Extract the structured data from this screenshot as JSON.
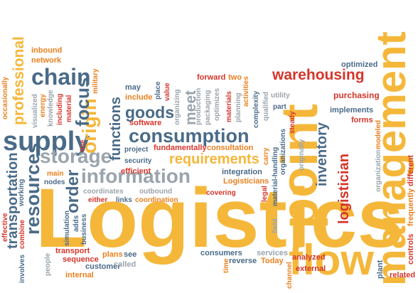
{
  "colors": {
    "yellow": "#f5b73a",
    "red": "#d5352a",
    "slate": "#4a6b88",
    "gray": "#9aa4ad",
    "orange": "#e9801f"
  },
  "words": [
    {
      "text": "Logistics",
      "color": "yellow"
    },
    {
      "text": "management",
      "color": "yellow"
    },
    {
      "text": "point",
      "color": "yellow"
    },
    {
      "text": "flow",
      "color": "yellow"
    },
    {
      "text": "warehousing",
      "color": "red"
    },
    {
      "text": "chain",
      "color": "slate"
    },
    {
      "text": "supply",
      "color": "slate"
    },
    {
      "text": "storage",
      "color": "gray"
    },
    {
      "text": "information",
      "color": "gray"
    },
    {
      "text": "consumption",
      "color": "slate"
    },
    {
      "text": "goods",
      "color": "slate"
    },
    {
      "text": "requirements",
      "color": "yellow"
    },
    {
      "text": "resources",
      "color": "slate"
    },
    {
      "text": "origin",
      "color": "yellow"
    },
    {
      "text": "focus",
      "color": "slate"
    },
    {
      "text": "order",
      "color": "slate"
    },
    {
      "text": "professional",
      "color": "yellow"
    },
    {
      "text": "transportation",
      "color": "slate"
    },
    {
      "text": "logistician",
      "color": "red"
    },
    {
      "text": "inventory",
      "color": "slate"
    },
    {
      "text": "functions",
      "color": "slate"
    },
    {
      "text": "meet",
      "color": "gray"
    },
    {
      "text": "inbound",
      "color": "orange"
    },
    {
      "text": "network",
      "color": "orange"
    },
    {
      "text": "occasionally",
      "color": "orange"
    },
    {
      "text": "energy",
      "color": "orange"
    },
    {
      "text": "visualized",
      "color": "gray"
    },
    {
      "text": "knowledge",
      "color": "gray"
    },
    {
      "text": "including",
      "color": "red"
    },
    {
      "text": "material",
      "color": "red"
    },
    {
      "text": "military",
      "color": "orange"
    },
    {
      "text": "may",
      "color": "slate"
    },
    {
      "text": "include",
      "color": "orange"
    },
    {
      "text": "place",
      "color": "slate"
    },
    {
      "text": "value",
      "color": "red"
    },
    {
      "text": "organizing",
      "color": "gray"
    },
    {
      "text": "production",
      "color": "gray"
    },
    {
      "text": "packaging",
      "color": "gray"
    },
    {
      "text": "optimizes",
      "color": "gray"
    },
    {
      "text": "forward",
      "color": "red"
    },
    {
      "text": "two",
      "color": "orange"
    },
    {
      "text": "materials",
      "color": "red"
    },
    {
      "text": "activities",
      "color": "orange"
    },
    {
      "text": "planning",
      "color": "gray"
    },
    {
      "text": "complexity",
      "color": "slate"
    },
    {
      "text": "qualified",
      "color": "gray"
    },
    {
      "text": "utility",
      "color": "gray"
    },
    {
      "text": "part",
      "color": "slate"
    },
    {
      "text": "steady",
      "color": "red"
    },
    {
      "text": "organizations",
      "color": "slate"
    },
    {
      "text": "optimized",
      "color": "slate"
    },
    {
      "text": "purchasing",
      "color": "red"
    },
    {
      "text": "implements",
      "color": "slate"
    },
    {
      "text": "forms",
      "color": "red"
    },
    {
      "text": "organization",
      "color": "gray"
    },
    {
      "text": "modeled",
      "color": "orange"
    },
    {
      "text": "different",
      "color": "red"
    },
    {
      "text": "frequently",
      "color": "orange"
    },
    {
      "text": "controls",
      "color": "red"
    },
    {
      "text": "One",
      "color": "red"
    },
    {
      "text": "software",
      "color": "red"
    },
    {
      "text": "security",
      "color": "slate"
    },
    {
      "text": "project",
      "color": "slate"
    },
    {
      "text": "fundamentally",
      "color": "red"
    },
    {
      "text": "consultation",
      "color": "orange"
    },
    {
      "text": "efficient",
      "color": "red"
    },
    {
      "text": "carry",
      "color": "orange"
    },
    {
      "text": "material-handling",
      "color": "slate"
    },
    {
      "text": "integration",
      "color": "slate"
    },
    {
      "text": "Logisticians",
      "color": "orange"
    },
    {
      "text": "originally",
      "color": "gray"
    },
    {
      "text": "main",
      "color": "orange"
    },
    {
      "text": "nodes",
      "color": "slate"
    },
    {
      "text": "coordinates",
      "color": "gray"
    },
    {
      "text": "outbound",
      "color": "gray"
    },
    {
      "text": "either",
      "color": "red"
    },
    {
      "text": "links",
      "color": "slate"
    },
    {
      "text": "coordination",
      "color": "orange"
    },
    {
      "text": "covering",
      "color": "red"
    },
    {
      "text": "legal",
      "color": "red"
    },
    {
      "text": "working",
      "color": "slate"
    },
    {
      "text": "effective",
      "color": "red"
    },
    {
      "text": "combine",
      "color": "red"
    },
    {
      "text": "involves",
      "color": "slate"
    },
    {
      "text": "simulation",
      "color": "slate"
    },
    {
      "text": "adds",
      "color": "slate"
    },
    {
      "text": "business",
      "color": "slate"
    },
    {
      "text": "field",
      "color": "gray"
    },
    {
      "text": "transport",
      "color": "red"
    },
    {
      "text": "sequence",
      "color": "red"
    },
    {
      "text": "plans",
      "color": "orange"
    },
    {
      "text": "see",
      "color": "slate"
    },
    {
      "text": "customer",
      "color": "slate"
    },
    {
      "text": "called",
      "color": "gray"
    },
    {
      "text": "internal",
      "color": "orange"
    },
    {
      "text": "people",
      "color": "gray"
    },
    {
      "text": "time",
      "color": "orange"
    },
    {
      "text": "consumers",
      "color": "slate"
    },
    {
      "text": "services",
      "color": "gray"
    },
    {
      "text": "reverse",
      "color": "slate"
    },
    {
      "text": "Today",
      "color": "orange"
    },
    {
      "text": "analyzed",
      "color": "red"
    },
    {
      "text": "external",
      "color": "red"
    },
    {
      "text": "channel",
      "color": "orange"
    },
    {
      "text": "plant",
      "color": "slate"
    },
    {
      "text": "related",
      "color": "red"
    }
  ]
}
